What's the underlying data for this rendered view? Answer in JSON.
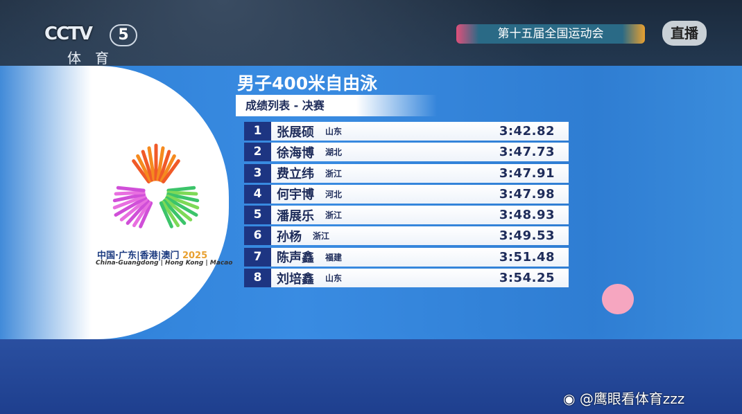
{
  "broadcast": {
    "channel_logo": "CCTV",
    "channel_number": "5",
    "channel_name": "体育",
    "event_name": "第十五届全国运动会",
    "live_label": "直播"
  },
  "games_logo": {
    "name_cn": "中国·广东|香港|澳门",
    "year": "2025",
    "name_en": "China-Guangdong | Hong Kong | Macao"
  },
  "results": {
    "title": "男子400米自由泳",
    "subtitle": "成绩列表 - 决赛",
    "rows": [
      {
        "rank": "1",
        "name": "张展硕",
        "province": "山东",
        "time": "3:42.82"
      },
      {
        "rank": "2",
        "name": "徐海博",
        "province": "湖北",
        "time": "3:47.73"
      },
      {
        "rank": "3",
        "name": "费立纬",
        "province": "浙江",
        "time": "3:47.91"
      },
      {
        "rank": "4",
        "name": "何宇博",
        "province": "河北",
        "time": "3:47.98"
      },
      {
        "rank": "5",
        "name": "潘展乐",
        "province": "浙江",
        "time": "3:48.93"
      },
      {
        "rank": "6",
        "name": "孙杨",
        "province": "浙江",
        "time": "3:49.53"
      },
      {
        "rank": "7",
        "name": "陈声鑫",
        "province": "福建",
        "time": "3:51.48"
      },
      {
        "rank": "8",
        "name": "刘培鑫",
        "province": "山东",
        "time": "3:54.25"
      }
    ]
  },
  "watermark": {
    "text": "@鹰眼看体育zzz",
    "icon": "weibo-icon"
  },
  "colors": {
    "panel": "#2f85dc",
    "rank_box": "#1d3582",
    "text_dark": "#1e2c5a"
  }
}
